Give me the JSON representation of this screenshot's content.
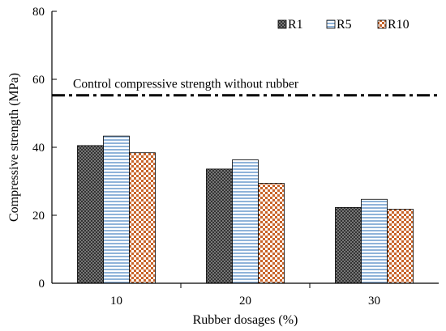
{
  "chart_data": {
    "type": "bar",
    "categories": [
      "10",
      "20",
      "30"
    ],
    "series": [
      {
        "name": "R1",
        "values": [
          40.5,
          33.6,
          22.3
        ],
        "pattern": "checker-dark"
      },
      {
        "name": "R5",
        "values": [
          43.3,
          36.3,
          24.7
        ],
        "pattern": "hstripe-blue"
      },
      {
        "name": "R10",
        "values": [
          38.4,
          29.4,
          21.8
        ],
        "pattern": "checker-orange"
      }
    ],
    "reference_line": {
      "label": "Control compressive strength without rubber",
      "value": 55.3,
      "style": "dash-dot"
    },
    "xlabel": "Rubber dosages (%)",
    "ylabel": "Compressive strength (MPa)",
    "ylim": [
      0,
      80
    ],
    "yticks": [
      0,
      20,
      40,
      60,
      80
    ],
    "grid": false,
    "legend_position": "top-right",
    "colors": {
      "R1_fill": "#444444",
      "R5_stripe": "#8fb3d9",
      "R10_fill": "#c8642a"
    }
  }
}
